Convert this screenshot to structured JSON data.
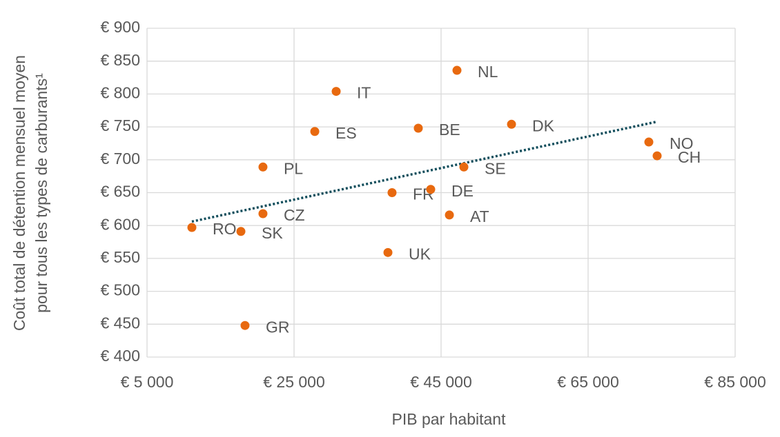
{
  "chart_data": {
    "type": "scatter",
    "x_label": "PIB par habitant",
    "y_label": [
      "Coût total de détention mensuel moyen",
      "pour tous les types de carburants¹"
    ],
    "color": "#e8690f",
    "points": [
      {
        "label": "RO",
        "x": 11100,
        "y": 597
      },
      {
        "label": "SK",
        "x": 17770,
        "y": 591
      },
      {
        "label": "GR",
        "x": 18330,
        "y": 448
      },
      {
        "label": "CZ",
        "x": 20770,
        "y": 618
      },
      {
        "label": "PL",
        "x": 20770,
        "y": 689
      },
      {
        "label": "ES",
        "x": 27820,
        "y": 743
      },
      {
        "label": "IT",
        "x": 30730,
        "y": 804
      },
      {
        "label": "UK",
        "x": 37770,
        "y": 559
      },
      {
        "label": "FR",
        "x": 38330,
        "y": 650
      },
      {
        "label": "BE",
        "x": 41900,
        "y": 748
      },
      {
        "label": "DE",
        "x": 43590,
        "y": 655
      },
      {
        "label": "AT",
        "x": 46130,
        "y": 616
      },
      {
        "label": "NL",
        "x": 47160,
        "y": 836
      },
      {
        "label": "SE",
        "x": 48100,
        "y": 689
      },
      {
        "label": "DK",
        "x": 54580,
        "y": 754
      },
      {
        "label": "NO",
        "x": 73260,
        "y": 727
      },
      {
        "label": "CH",
        "x": 74390,
        "y": 706
      }
    ],
    "trendline": {
      "color": "#124e5c",
      "x": [
        11100,
        74390
      ],
      "y": [
        606,
        758
      ]
    },
    "xlim": [
      5000,
      85000
    ],
    "xticks": [
      {
        "value": 5000,
        "label": "€ 5 000"
      },
      {
        "value": 25000,
        "label": "€ 25 000"
      },
      {
        "value": 45000,
        "label": "€ 45 000"
      },
      {
        "value": 65000,
        "label": "€ 65 000"
      },
      {
        "value": 85000,
        "label": "€ 85 000"
      }
    ],
    "ylim": [
      400,
      900
    ],
    "yticks": [
      {
        "value": 400,
        "label": "€ 400"
      },
      {
        "value": 450,
        "label": "€ 450"
      },
      {
        "value": 500,
        "label": "€ 500"
      },
      {
        "value": 550,
        "label": "€ 550"
      },
      {
        "value": 600,
        "label": "€ 600"
      },
      {
        "value": 650,
        "label": "€ 650"
      },
      {
        "value": 700,
        "label": "€ 700"
      },
      {
        "value": 750,
        "label": "€ 750"
      },
      {
        "value": 800,
        "label": "€ 800"
      },
      {
        "value": 850,
        "label": "€ 850"
      },
      {
        "value": 900,
        "label": "€ 900"
      }
    ],
    "grid": true
  }
}
